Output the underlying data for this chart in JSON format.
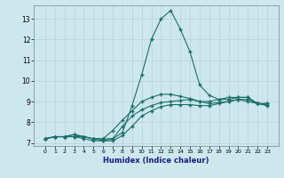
{
  "xlabel": "Humidex (Indice chaleur)",
  "ylabel": "",
  "bg_color": "#cde8ec",
  "grid_color": "#b8d0d8",
  "line_color": "#1a6e6a",
  "x": [
    0,
    1,
    2,
    3,
    4,
    5,
    6,
    7,
    8,
    9,
    10,
    11,
    12,
    13,
    14,
    15,
    16,
    17,
    18,
    19,
    20,
    21,
    22,
    23
  ],
  "line1": [
    7.2,
    7.3,
    7.3,
    7.4,
    7.3,
    7.2,
    7.2,
    7.2,
    7.5,
    8.8,
    10.3,
    12.0,
    13.0,
    13.4,
    12.5,
    11.4,
    9.8,
    9.3,
    9.1,
    9.1,
    9.2,
    9.2,
    8.9,
    8.9
  ],
  "line2": [
    7.2,
    7.3,
    7.3,
    7.3,
    7.3,
    7.2,
    7.1,
    7.2,
    7.8,
    8.3,
    8.6,
    8.8,
    8.95,
    9.0,
    9.05,
    9.1,
    9.0,
    8.9,
    8.95,
    9.0,
    9.1,
    9.1,
    8.9,
    8.85
  ],
  "line3": [
    7.2,
    7.3,
    7.3,
    7.4,
    7.3,
    7.2,
    7.2,
    7.6,
    8.1,
    8.55,
    9.0,
    9.2,
    9.35,
    9.35,
    9.25,
    9.15,
    9.0,
    9.0,
    9.1,
    9.2,
    9.2,
    9.2,
    8.9,
    8.9
  ],
  "line4": [
    7.2,
    7.3,
    7.3,
    7.3,
    7.2,
    7.1,
    7.1,
    7.1,
    7.35,
    7.8,
    8.3,
    8.55,
    8.75,
    8.85,
    8.85,
    8.85,
    8.8,
    8.8,
    8.9,
    9.0,
    9.1,
    9.0,
    8.9,
    8.8
  ],
  "ylim": [
    6.85,
    13.65
  ],
  "yticks": [
    7,
    8,
    9,
    10,
    11,
    12,
    13
  ],
  "xticks": [
    0,
    1,
    2,
    3,
    4,
    5,
    6,
    7,
    8,
    9,
    10,
    11,
    12,
    13,
    14,
    15,
    16,
    17,
    18,
    19,
    20,
    21,
    22,
    23
  ],
  "marker": "+"
}
